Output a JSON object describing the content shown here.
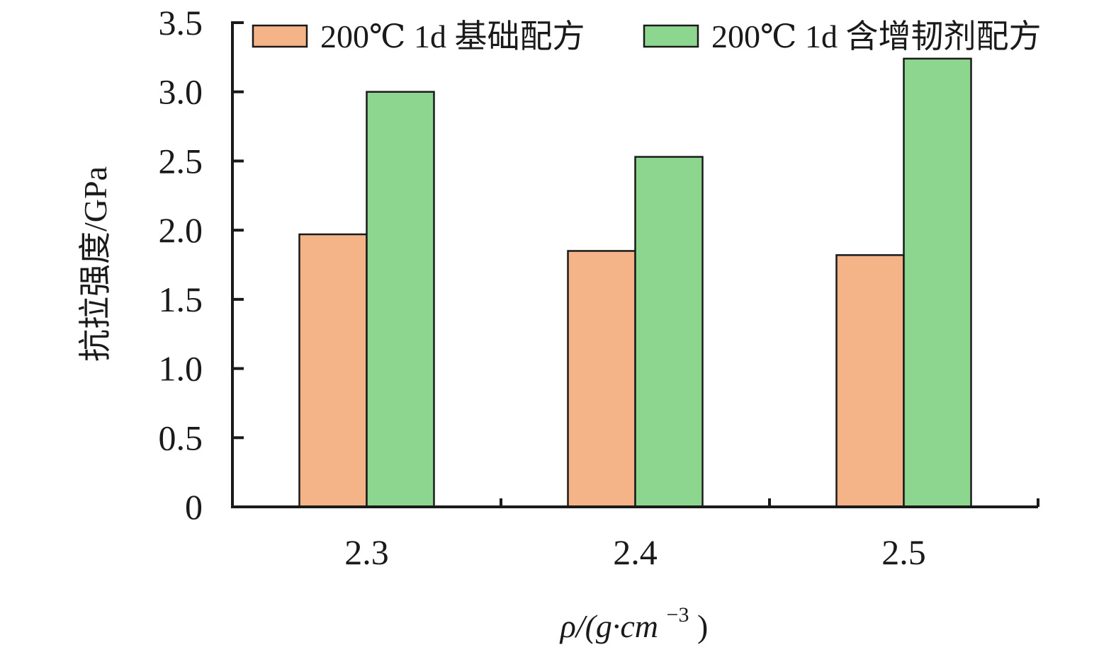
{
  "chart_data": {
    "type": "bar",
    "categories": [
      "2.3",
      "2.4",
      "2.5"
    ],
    "series": [
      {
        "name": "200℃ 1d 基础配方",
        "values": [
          1.97,
          1.85,
          1.82
        ],
        "color": "#F5B388"
      },
      {
        "name": "200℃ 1d 含增韧剂配方",
        "values": [
          3.0,
          2.53,
          3.24
        ],
        "color": "#8DD68F"
      }
    ],
    "ylabel": "抗拉强度/GPa",
    "xlabel": {
      "prefix": "ρ/(g·cm",
      "superscript": "−3",
      "suffix": ")"
    },
    "yticks": [
      "0",
      "0.5",
      "1.0",
      "1.5",
      "2.0",
      "2.5",
      "3.0",
      "3.5"
    ],
    "ylim": [
      0,
      3.5
    ],
    "grid": false,
    "legend_position": "top"
  }
}
